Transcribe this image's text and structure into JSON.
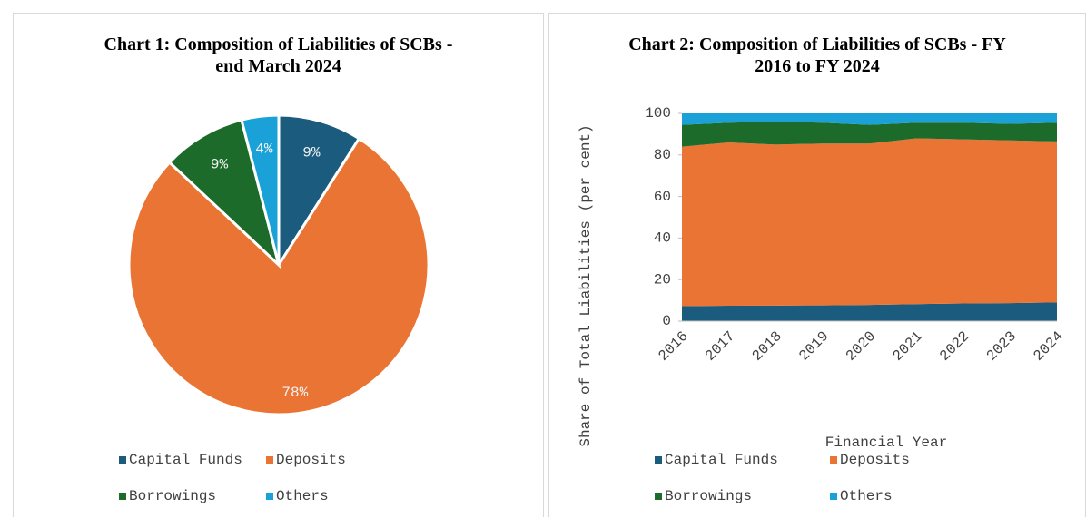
{
  "chart_data": [
    {
      "type": "pie",
      "title": "Chart 1: Composition of Liabilities of SCBs - end March 2024",
      "categories": [
        "Capital Funds",
        "Deposits",
        "Borrowings",
        "Others"
      ],
      "values": [
        9,
        78,
        9,
        4
      ],
      "value_labels": [
        "9%",
        "78%",
        "9%",
        "4%"
      ],
      "colors": [
        "#1a5b7e",
        "#ea7433",
        "#1d6b2a",
        "#19a1d8"
      ],
      "legend": "bottom"
    },
    {
      "type": "area",
      "title": "Chart 2: Composition of Liabilities of SCBs - FY 2016 to FY 2024",
      "categories": [
        "2016",
        "2017",
        "2018",
        "2019",
        "2020",
        "2021",
        "2022",
        "2023",
        "2024"
      ],
      "xlabel": "Financial Year",
      "ylabel": "Share of Total Liabilities (per cent)",
      "ylim": [
        0,
        100
      ],
      "yticks": [
        0,
        20,
        40,
        60,
        80,
        100
      ],
      "stacked": true,
      "legend": "bottom",
      "series": [
        {
          "name": "Capital Funds",
          "color": "#1a5b7e",
          "values": [
            7.2,
            7.4,
            7.5,
            7.6,
            7.8,
            8.2,
            8.5,
            8.7,
            9.0
          ]
        },
        {
          "name": "Deposits",
          "color": "#ea7433",
          "values": [
            76.8,
            78.6,
            77.5,
            77.9,
            77.7,
            79.8,
            79.0,
            78.3,
            77.5
          ]
        },
        {
          "name": "Borrowings",
          "color": "#1d6b2a",
          "values": [
            10.5,
            9.5,
            11,
            10,
            9,
            7.5,
            8,
            8,
            9
          ]
        },
        {
          "name": "Others",
          "color": "#19a1d8",
          "values": [
            5.5,
            4.5,
            4,
            4.5,
            5.5,
            4.5,
            4.5,
            5,
            4.5
          ]
        }
      ]
    }
  ]
}
